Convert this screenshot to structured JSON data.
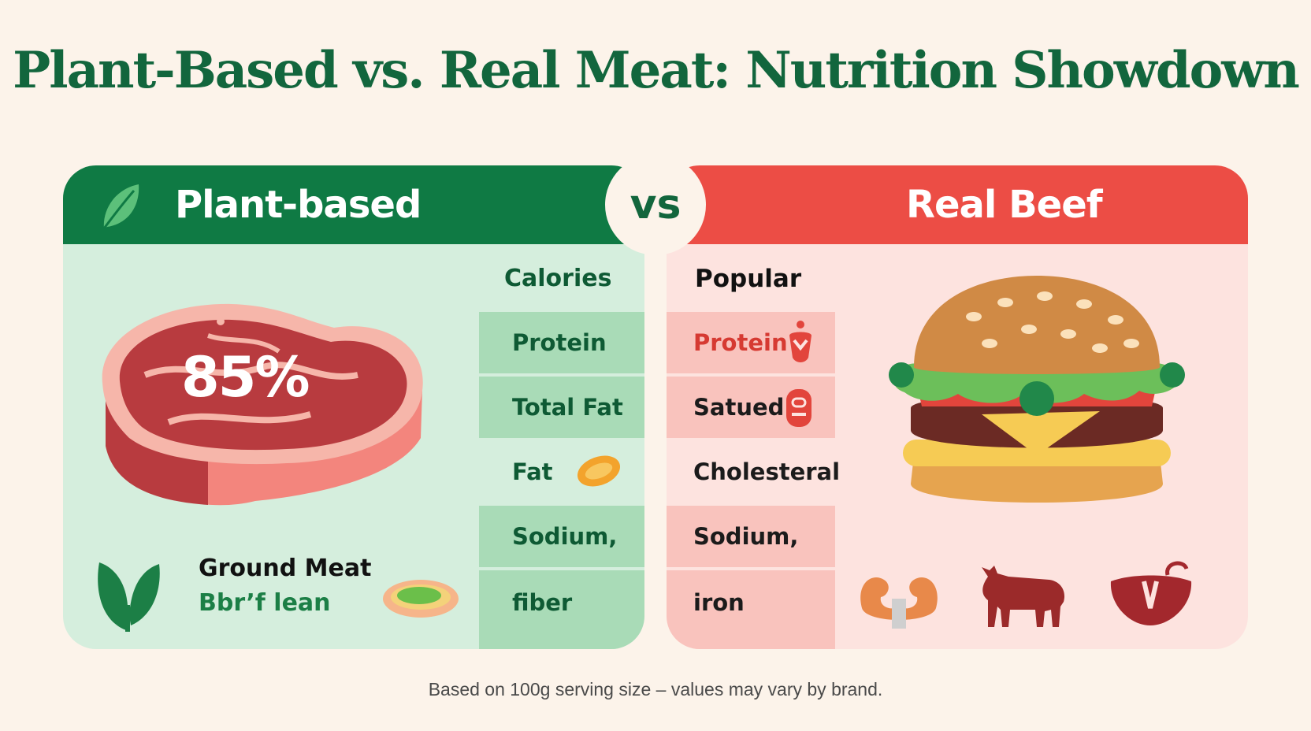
{
  "title": "Plant-Based vs. Real Meat: Nutrition Showdown",
  "vs_label": "vs",
  "left_panel": {
    "header": "Plant-based",
    "percent": "85%",
    "column_heading": "Calories",
    "rows": [
      "Protein",
      "Total Fat",
      "Fat",
      "Sodium,",
      "fiber"
    ],
    "label_line1": "Ground Meat",
    "label_line2": "Bbr’f lean"
  },
  "right_panel": {
    "header": "Real Beef",
    "column_heading": "Popular",
    "rows": [
      "Protein",
      "Satued",
      "Cholesteral",
      "Sodium,",
      "iron"
    ]
  },
  "footer": "Based on 100g serving size – values may vary by brand.",
  "colors": {
    "plant_green": "#0f7a44",
    "beef_red": "#ec4d45",
    "title_green": "#12663d",
    "background": "#fcf3ea"
  },
  "icons": [
    "leaf-icon",
    "steak-icon",
    "plant-sprout-icon",
    "plant-patty-icon",
    "avocado-slice-icon",
    "burger-icon",
    "protein-bottle-icon",
    "fat-drop-icon",
    "muscle-icon",
    "cow-icon",
    "beef-cut-icon"
  ]
}
